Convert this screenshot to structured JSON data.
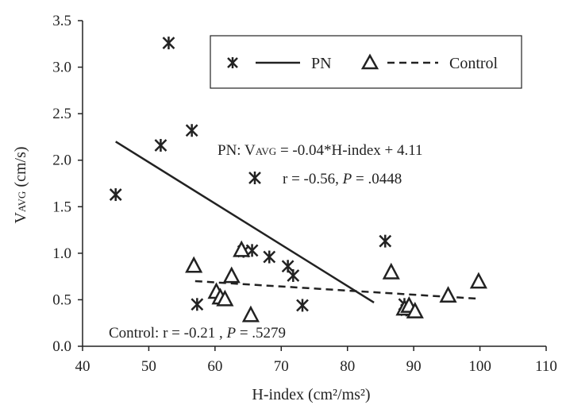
{
  "chart_data": {
    "type": "scatter",
    "xlabel": "H-index (cm²/ms²)",
    "ylabel_main": "V",
    "ylabel_sub": "AVG",
    "ylabel_unit": " (cm/s)",
    "xlim": [
      40,
      110
    ],
    "ylim": [
      0,
      3.5
    ],
    "x_ticks": [
      "40",
      "50",
      "60",
      "70",
      "80",
      "90",
      "100",
      "110"
    ],
    "y_ticks": [
      "0.0",
      "0.5",
      "1.0",
      "1.5",
      "2.0",
      "2.5",
      "3.0",
      "3.5"
    ],
    "grid": false,
    "legend_position": "top-right",
    "series": [
      {
        "name": "PN",
        "marker": "asterisk",
        "color": "#222222",
        "points": [
          {
            "x": 45.0,
            "y": 1.63
          },
          {
            "x": 51.8,
            "y": 2.16
          },
          {
            "x": 53.0,
            "y": 3.26
          },
          {
            "x": 56.5,
            "y": 2.32
          },
          {
            "x": 57.3,
            "y": 0.45
          },
          {
            "x": 64.3,
            "y": 1.02
          },
          {
            "x": 65.6,
            "y": 1.03
          },
          {
            "x": 68.2,
            "y": 0.96
          },
          {
            "x": 71.0,
            "y": 0.86
          },
          {
            "x": 71.8,
            "y": 0.76
          },
          {
            "x": 73.2,
            "y": 0.44
          },
          {
            "x": 85.7,
            "y": 1.13
          },
          {
            "x": 88.6,
            "y": 0.45
          },
          {
            "x": 88.9,
            "y": 0.39
          }
        ]
      },
      {
        "name": "Control",
        "marker": "triangle",
        "color": "#222222",
        "points": [
          {
            "x": 56.8,
            "y": 0.86
          },
          {
            "x": 60.2,
            "y": 0.58
          },
          {
            "x": 60.8,
            "y": 0.52
          },
          {
            "x": 61.5,
            "y": 0.5
          },
          {
            "x": 62.5,
            "y": 0.75
          },
          {
            "x": 64.0,
            "y": 1.03
          },
          {
            "x": 65.4,
            "y": 0.33
          },
          {
            "x": 86.6,
            "y": 0.79
          },
          {
            "x": 88.6,
            "y": 0.4
          },
          {
            "x": 89.3,
            "y": 0.43
          },
          {
            "x": 90.2,
            "y": 0.37
          },
          {
            "x": 95.2,
            "y": 0.54
          },
          {
            "x": 99.8,
            "y": 0.69
          }
        ]
      }
    ],
    "fit_lines": [
      {
        "series": "PN",
        "style": "solid",
        "x": [
          45,
          84
        ],
        "y": [
          2.2,
          0.47
        ]
      },
      {
        "series": "Control",
        "style": "dashed",
        "x": [
          57,
          100
        ],
        "y": [
          0.7,
          0.51
        ]
      }
    ],
    "annotations": {
      "pn_eq_prefix": "PN: V",
      "pn_eq_sub": "AVG",
      "pn_eq_rest": " = -0.04*H-index + 4.11",
      "pn_r_prefix": "r = -0.56, ",
      "pn_r_p": "P",
      "pn_r_rest": " = .0448",
      "ctrl_prefix": "Control: r = -0.21 , ",
      "ctrl_p": "P",
      "ctrl_rest": " = .5279"
    }
  }
}
